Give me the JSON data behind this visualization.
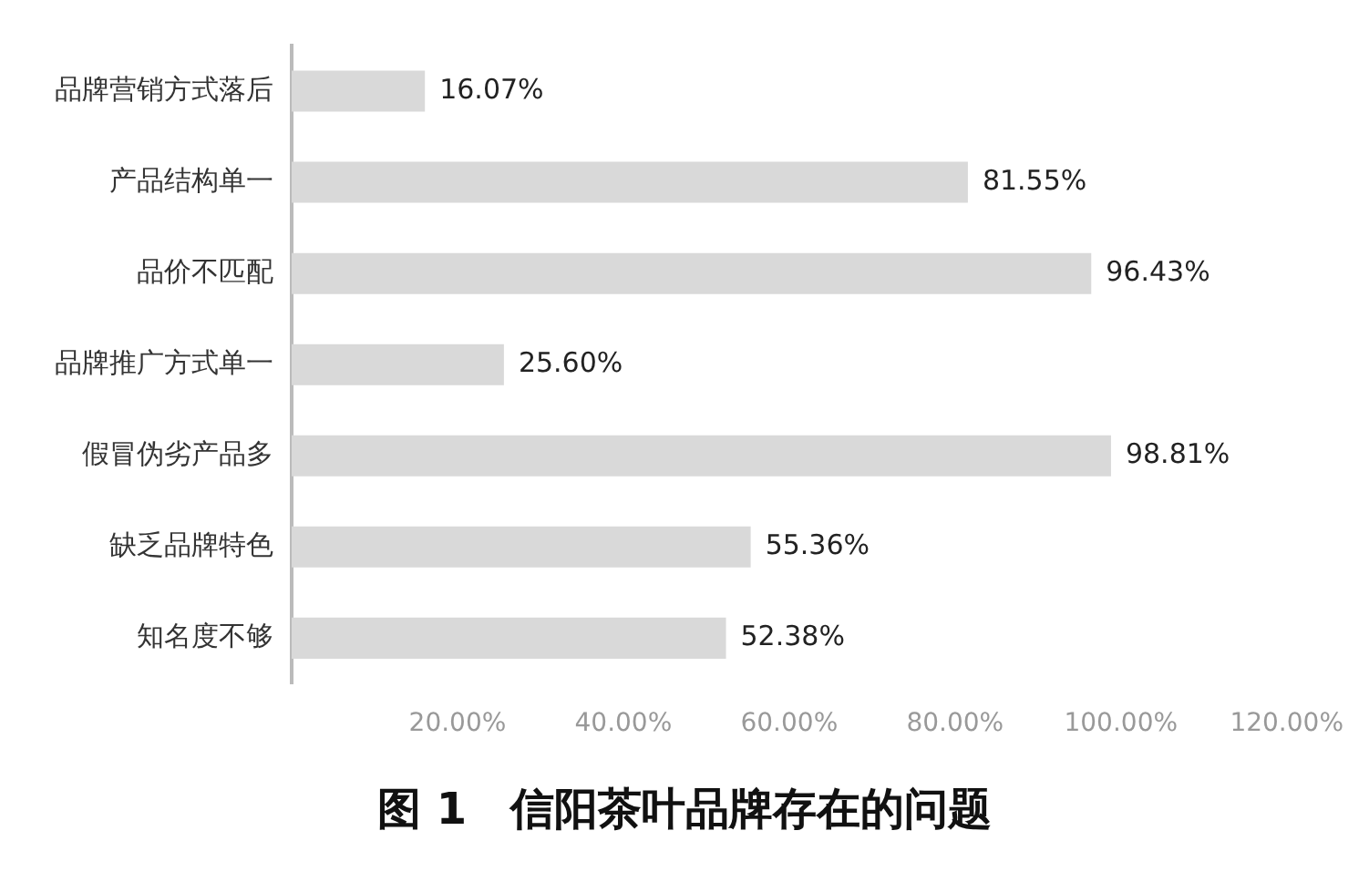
{
  "chart_data": {
    "type": "bar",
    "orientation": "horizontal",
    "title": "图 1　信阳茶叶品牌存在的问题",
    "categories": [
      "品牌营销方式落后",
      "产品结构单一",
      "品价不匹配",
      "品牌推广方式单一",
      "假冒伪劣产品多",
      "缺乏品牌特色",
      "知名度不够"
    ],
    "values": [
      16.07,
      81.55,
      96.43,
      25.6,
      98.81,
      55.36,
      52.38
    ],
    "value_labels": [
      "16.07%",
      "81.55%",
      "96.43%",
      "25.60%",
      "98.81%",
      "55.36%",
      "52.38%"
    ],
    "color": "#d9d9d9",
    "xlim": [
      0,
      120
    ],
    "xticks": [
      {
        "value": 20,
        "label": "20.00%"
      },
      {
        "value": 40,
        "label": "40.00%"
      },
      {
        "value": 60,
        "label": "60.00%"
      },
      {
        "value": 80,
        "label": "80.00%"
      },
      {
        "value": 100,
        "label": "100.00%"
      },
      {
        "value": 120,
        "label": "120.00%"
      }
    ],
    "grid": false,
    "legend": false
  }
}
